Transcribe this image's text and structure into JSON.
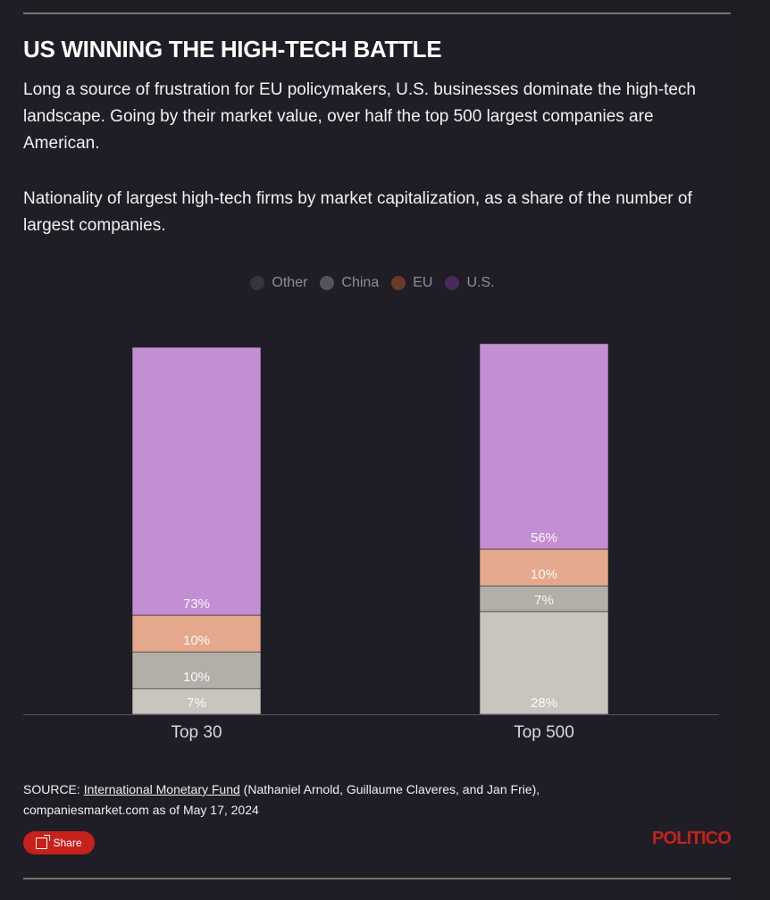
{
  "header": {
    "title": "US WINNING THE HIGH-TECH BATTLE",
    "description": "Long a source of frustration for EU policymakers, U.S. businesses dominate the high-tech landscape. Going by their market value, over half the top 500 largest companies are American.",
    "subdescription": "Nationality of largest high-tech firms by market capitalization, as a share of the number of largest companies."
  },
  "legend": [
    {
      "label": "Other",
      "color": "#36353b"
    },
    {
      "label": "China",
      "color": "#55535a"
    },
    {
      "label": "EU",
      "color": "#6a3a24"
    },
    {
      "label": "U.S.",
      "color": "#4a2a5a"
    }
  ],
  "chart_data": {
    "type": "bar",
    "stacked": true,
    "categories": [
      "Top 30",
      "Top 500"
    ],
    "series": [
      {
        "name": "Other",
        "values": [
          7,
          28
        ],
        "color": "#c8c5bf",
        "labels": [
          "7%",
          "28%"
        ]
      },
      {
        "name": "China",
        "values": [
          10,
          7
        ],
        "color": "#b2aea8",
        "labels": [
          "10%",
          "7%"
        ]
      },
      {
        "name": "EU",
        "values": [
          10,
          10
        ],
        "color": "#e4a98d",
        "labels": [
          "10%",
          "10%"
        ]
      },
      {
        "name": "U.S.",
        "values": [
          73,
          56
        ],
        "color": "#c48ed3",
        "labels": [
          "73%",
          "56%"
        ]
      }
    ],
    "ylim": [
      0,
      100
    ],
    "grid": false,
    "legend_position": "top-center"
  },
  "footer": {
    "source_prefix": "SOURCE: ",
    "source_link": "International Monetary Fund",
    "source_rest": " (Nathaniel Arnold, Guillaume Claveres, and Jan Frie),",
    "source_line2": "companiesmarket.com as of May 17, 2024",
    "share_label": "Share",
    "logo": "POLITICO"
  }
}
